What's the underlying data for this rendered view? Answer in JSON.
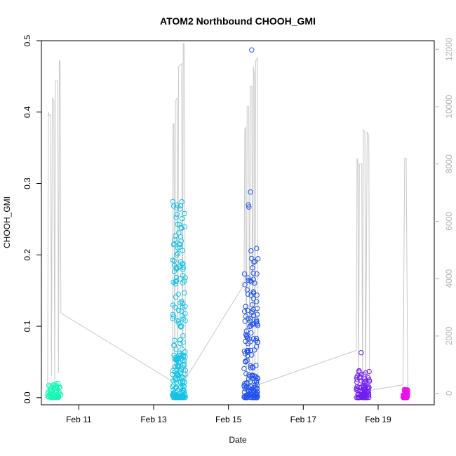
{
  "chart_data": {
    "type": "scatter",
    "title": "ATOM2 Northbound CHOOH_GMI",
    "xlabel": "Date",
    "ylabel": "CHOOH_GMI",
    "x_axis": {
      "range": [
        "2018-02-10T00:00",
        "2018-02-20T12:00"
      ],
      "ticks": [
        {
          "value": "2018-02-11",
          "label": "Feb 11"
        },
        {
          "value": "2018-02-13",
          "label": "Feb 13"
        },
        {
          "value": "2018-02-15",
          "label": "Feb 15"
        },
        {
          "value": "2018-02-17",
          "label": "Feb 17"
        },
        {
          "value": "2018-02-19",
          "label": "Feb 19"
        }
      ]
    },
    "y_axis": {
      "range": [
        -0.01,
        0.5
      ],
      "ticks": [
        {
          "value": 0.0,
          "label": "0.0"
        },
        {
          "value": 0.1,
          "label": "0.1"
        },
        {
          "value": 0.2,
          "label": "0.2"
        },
        {
          "value": 0.3,
          "label": "0.3"
        },
        {
          "value": 0.4,
          "label": "0.4"
        },
        {
          "value": 0.5,
          "label": "0.5"
        }
      ]
    },
    "y2_axis": {
      "range": [
        -400,
        12300
      ],
      "color": "#b3b3b3",
      "ticks": [
        {
          "value": 0,
          "label": "0"
        },
        {
          "value": 2000,
          "label": "2000"
        },
        {
          "value": 4000,
          "label": "4000"
        },
        {
          "value": 6000,
          "label": "6000"
        },
        {
          "value": 8000,
          "label": "8000"
        },
        {
          "value": 10000,
          "label": "10000"
        },
        {
          "value": 12000,
          "label": "12000"
        }
      ]
    },
    "grid": false,
    "flights": [
      {
        "start": "2018-02-10T04:00",
        "end": "2018-02-10T12:30",
        "color": "#1cf7b6",
        "ymin": 0.0,
        "ymax": 0.02,
        "outliers": []
      },
      {
        "start": "2018-02-13T12:00",
        "end": "2018-02-13T20:30",
        "color": "#14c2e8",
        "ymin": 0.0,
        "ymax": 0.28,
        "outliers": []
      },
      {
        "start": "2018-02-15T10:00",
        "end": "2018-02-15T19:00",
        "color": "#2253ec",
        "ymin": 0.0,
        "ymax": 0.21,
        "outliers": [
          0.487,
          0.288,
          0.27,
          0.267
        ]
      },
      {
        "start": "2018-02-18T10:00",
        "end": "2018-02-18T18:30",
        "color": "#6f1ef0",
        "ymin": 0.0,
        "ymax": 0.04,
        "outliers": [
          0.063
        ]
      },
      {
        "start": "2018-02-19T16:00",
        "end": "2018-02-19T19:00",
        "color": "#ee10ee",
        "ymin": 0.0,
        "ymax": 0.012,
        "outliers": []
      }
    ],
    "altitude_series": {
      "name": "altitude",
      "color": "#c8c8c8",
      "axis": "right",
      "points": [
        [
          "2018-02-10T04:00",
          50
        ],
        [
          "2018-02-10T04:30",
          9800
        ],
        [
          "2018-02-10T05:00",
          9700
        ],
        [
          "2018-02-10T06:00",
          9700
        ],
        [
          "2018-02-10T06:30",
          600
        ],
        [
          "2018-02-10T07:00",
          10300
        ],
        [
          "2018-02-10T08:00",
          10200
        ],
        [
          "2018-02-10T08:30",
          500
        ],
        [
          "2018-02-10T09:00",
          10900
        ],
        [
          "2018-02-10T10:30",
          10900
        ],
        [
          "2018-02-10T11:00",
          700
        ],
        [
          "2018-02-10T11:30",
          11600
        ],
        [
          "2018-02-10T12:00",
          11600
        ],
        [
          "2018-02-10T12:30",
          2800
        ],
        [
          "2018-02-13T12:00",
          420
        ],
        [
          "2018-02-13T12:30",
          9400
        ],
        [
          "2018-02-13T13:00",
          9400
        ],
        [
          "2018-02-13T13:30",
          400
        ],
        [
          "2018-02-13T14:00",
          10200
        ],
        [
          "2018-02-13T15:00",
          10300
        ],
        [
          "2018-02-13T15:30",
          500
        ],
        [
          "2018-02-13T16:00",
          11400
        ],
        [
          "2018-02-13T18:00",
          11500
        ],
        [
          "2018-02-13T18:30",
          300
        ],
        [
          "2018-02-13T19:00",
          12200
        ],
        [
          "2018-02-13T19:30",
          12200
        ],
        [
          "2018-02-13T20:30",
          500
        ],
        [
          "2018-02-15T10:00",
          3800
        ],
        [
          "2018-02-15T10:30",
          9200
        ],
        [
          "2018-02-15T11:00",
          9300
        ],
        [
          "2018-02-15T11:30",
          300
        ],
        [
          "2018-02-15T12:00",
          10000
        ],
        [
          "2018-02-15T13:00",
          10000
        ],
        [
          "2018-02-15T13:30",
          400
        ],
        [
          "2018-02-15T14:00",
          10700
        ],
        [
          "2018-02-15T15:00",
          10700
        ],
        [
          "2018-02-15T15:30",
          300
        ],
        [
          "2018-02-15T16:00",
          11400
        ],
        [
          "2018-02-15T16:30",
          11200
        ],
        [
          "2018-02-15T17:00",
          300
        ],
        [
          "2018-02-15T17:30",
          11600
        ],
        [
          "2018-02-15T18:30",
          11700
        ],
        [
          "2018-02-15T19:00",
          300
        ],
        [
          "2018-02-18T10:00",
          1500
        ],
        [
          "2018-02-18T10:30",
          8200
        ],
        [
          "2018-02-18T11:00",
          8100
        ],
        [
          "2018-02-18T11:30",
          200
        ],
        [
          "2018-02-18T12:00",
          8000
        ],
        [
          "2018-02-18T13:30",
          8000
        ],
        [
          "2018-02-18T14:00",
          200
        ],
        [
          "2018-02-18T14:30",
          9200
        ],
        [
          "2018-02-18T15:30",
          9100
        ],
        [
          "2018-02-18T16:00",
          200
        ],
        [
          "2018-02-18T17:00",
          9100
        ],
        [
          "2018-02-18T18:00",
          9000
        ],
        [
          "2018-02-18T18:30",
          100
        ],
        [
          "2018-02-19T16:00",
          300
        ],
        [
          "2018-02-19T17:00",
          8200
        ],
        [
          "2018-02-19T18:00",
          8200
        ],
        [
          "2018-02-19T19:00",
          100
        ]
      ]
    }
  }
}
